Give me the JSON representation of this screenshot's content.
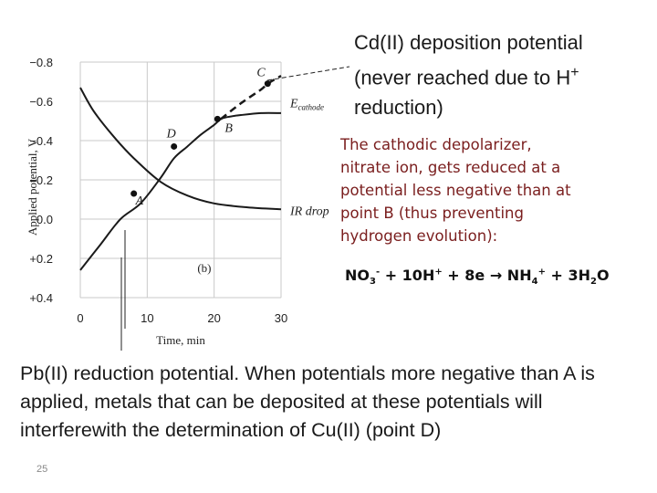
{
  "cd_annotation": {
    "line1": "Cd(II) deposition potential",
    "line2": "(never reached due to H",
    "line2_sup": "+",
    "line3": "reduction)"
  },
  "nitrate_annotation": {
    "lines": [
      "The cathodic depolarizer,",
      "nitrate ion, gets reduced at a",
      "potential less negative than at",
      "point B (thus preventing",
      "hydrogen evolution):"
    ]
  },
  "equation": {
    "no3": "NO",
    "no3_sub": "3",
    "no3_sup": "-",
    "plus1": " + 10H",
    "h_sup": "+",
    "plus2": " + 8e ",
    "arrow": "→",
    "nh4": " NH",
    "nh4_sub": "4",
    "nh4_sup": "+",
    "plus3": " + 3H",
    "h2o_sub": "2",
    "h2o": "O"
  },
  "pb_annotation": {
    "lines": [
      "Pb(II) reduction potential. When potentials more negative than A is",
      "applied, metals that can be deposited at these potentials will",
      "interferewith the determination of Cu(II) (point D)"
    ]
  },
  "page_number": "25",
  "chart_data": {
    "type": "line",
    "xlabel": "Time, min",
    "ylabel": "Applied potential, V",
    "x_ticks": [
      0,
      10,
      20,
      30
    ],
    "y_ticks": [
      -0.8,
      -0.6,
      -0.4,
      -0.2,
      0.0,
      0.2,
      0.4
    ],
    "y_tick_labels": [
      "−0.8",
      "−0.6",
      "−0.4",
      "−0.2",
      "0.0",
      "+0.2",
      "+0.4"
    ],
    "xlim": [
      0,
      30
    ],
    "ylim": [
      -0.8,
      0.4
    ],
    "y_inverted": true,
    "panel_label": "(b)",
    "series": [
      {
        "name": "E_cathode",
        "label_main": "E",
        "label_sub": "cathode",
        "x": [
          0,
          3,
          6,
          9,
          12,
          14,
          16,
          18,
          20,
          21,
          22,
          24,
          27,
          30
        ],
        "y": [
          0.26,
          0.13,
          0.0,
          -0.08,
          -0.21,
          -0.31,
          -0.37,
          -0.43,
          -0.48,
          -0.51,
          -0.52,
          -0.53,
          -0.54,
          -0.54
        ],
        "style": "solid"
      },
      {
        "name": "E_cathode_extrapolated",
        "x": [
          21,
          24,
          27,
          28,
          30
        ],
        "y": [
          -0.51,
          -0.59,
          -0.66,
          -0.69,
          -0.73
        ],
        "style": "dashed"
      },
      {
        "name": "IR drop",
        "label_main": "IR drop",
        "x": [
          0,
          2,
          5,
          8,
          12,
          16,
          20,
          25,
          30
        ],
        "y": [
          -0.67,
          -0.55,
          -0.42,
          -0.31,
          -0.19,
          -0.12,
          -0.08,
          -0.06,
          -0.05
        ],
        "style": "solid"
      }
    ],
    "points": [
      {
        "label": "A",
        "x": 8,
        "y": -0.13
      },
      {
        "label": "B",
        "x": 20.5,
        "y": -0.51
      },
      {
        "label": "C",
        "x": 28,
        "y": -0.69
      },
      {
        "label": "D",
        "x": 14,
        "y": -0.37
      }
    ]
  }
}
